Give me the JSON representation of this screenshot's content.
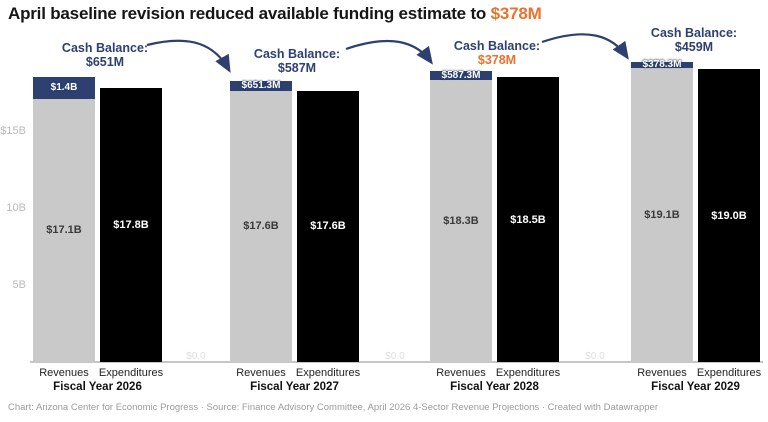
{
  "title": {
    "text": "April baseline revision reduced available funding estimate to ",
    "highlight": "$378M"
  },
  "colors": {
    "navy": "#2d4070",
    "orange": "#ED712C",
    "gray_bar": "#c9c9c9",
    "black_bar": "#000000",
    "gray_bar_text": "#3a3a3a",
    "black_bar_text": "#ffffff"
  },
  "chart_data": {
    "type": "bar",
    "title": "April baseline revision reduced available funding estimate to $378M",
    "unit": "billions of dollars",
    "ylim": [
      0,
      19.5
    ],
    "grid": "off",
    "y_ticks": [
      {
        "label": "$15B",
        "value": 15
      },
      {
        "label": "10B",
        "value": 10
      },
      {
        "label": "5B",
        "value": 5
      }
    ],
    "groups": [
      {
        "label": "Fiscal Year 2026",
        "annotation": {
          "label": "Cash Balance:",
          "value": "$651M",
          "highlight": false
        },
        "revenues": {
          "category": "Revenues",
          "value": 17.1,
          "value_label": "$17.1B",
          "carry_value": 1.4,
          "carry_label": "$1.4B"
        },
        "expenditures": {
          "category": "Expenditures",
          "value": 17.8,
          "value_label": "$17.8B"
        }
      },
      {
        "label": "Fiscal Year 2027",
        "annotation": {
          "label": "Cash Balance:",
          "value": "$587M",
          "highlight": false
        },
        "revenues": {
          "category": "Revenues",
          "value": 17.6,
          "value_label": "$17.6B",
          "carry_value": 0.6513,
          "carry_label": "$651.3M"
        },
        "expenditures": {
          "category": "Expenditures",
          "value": 17.6,
          "value_label": "$17.6B"
        }
      },
      {
        "label": "Fiscal Year 2028",
        "annotation": {
          "label": "Cash Balance:",
          "value": "$378M",
          "highlight": true
        },
        "revenues": {
          "category": "Revenues",
          "value": 18.3,
          "value_label": "$18.3B",
          "carry_value": 0.5873,
          "carry_label": "$587.3M"
        },
        "expenditures": {
          "category": "Expenditures",
          "value": 18.5,
          "value_label": "$18.5B"
        }
      },
      {
        "label": "Fiscal Year 2029",
        "annotation": {
          "label": "Cash Balance:",
          "value": "$459M",
          "highlight": false
        },
        "revenues": {
          "category": "Revenues",
          "value": 19.1,
          "value_label": "$19.1B",
          "carry_value": 0.3783,
          "carry_label": "$378.3M"
        },
        "expenditures": {
          "category": "Expenditures",
          "value": 19.0,
          "value_label": "$19.0B"
        }
      }
    ],
    "zero_labels": [
      "$0.0",
      "$0.0",
      "$0.0"
    ]
  },
  "footer": "Chart: Arizona Center for Economic Progress · Source: Finance Advisory Committee, April 2026 4-Sector Revenue Projections  · Created with Datawrapper"
}
